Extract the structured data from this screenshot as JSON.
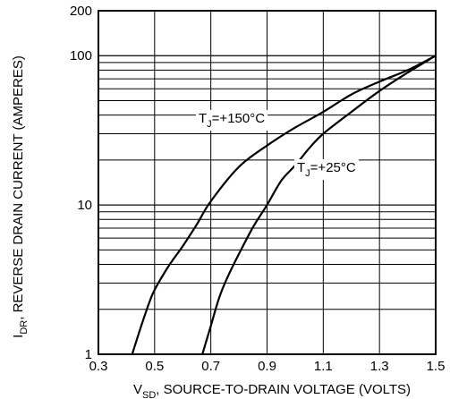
{
  "chart_data": {
    "type": "line",
    "title": "",
    "xlabel": {
      "main": "V",
      "sub": "SD",
      "rest": ", SOURCE-TO-DRAIN VOLTAGE (VOLTS)"
    },
    "ylabel": {
      "main": "I",
      "sub": "DR",
      "rest": ", REVERSE DRAIN CURRENT (AMPERES)"
    },
    "xlim": [
      0.3,
      1.5
    ],
    "ylim": [
      1,
      200
    ],
    "yscale": "log",
    "grid": true,
    "x_ticks": [
      "0.3",
      "0.5",
      "0.7",
      "0.9",
      "1.1",
      "1.3",
      "1.5"
    ],
    "y_ticks": [
      "1",
      "10",
      "100",
      "200"
    ],
    "series": [
      {
        "name": "T_J=+150°C",
        "label_main": "T",
        "label_sub": "J",
        "label_rest": "=+150°C",
        "x": [
          0.42,
          0.45,
          0.48,
          0.5,
          0.55,
          0.6,
          0.65,
          0.7,
          0.8,
          0.9,
          1.0,
          1.1,
          1.2,
          1.3,
          1.4,
          1.5
        ],
        "y": [
          1,
          1.5,
          2.2,
          2.7,
          3.9,
          5.3,
          7.4,
          10.6,
          18,
          25,
          33,
          42,
          55,
          67,
          80,
          100
        ]
      },
      {
        "name": "T_J=+25°C",
        "label_main": "T",
        "label_sub": "J",
        "label_rest": "=+25°C",
        "x": [
          0.67,
          0.7,
          0.73,
          0.76,
          0.8,
          0.85,
          0.9,
          0.95,
          1.0,
          1.05,
          1.1,
          1.2,
          1.3,
          1.4,
          1.5
        ],
        "y": [
          1,
          1.55,
          2.4,
          3.3,
          4.7,
          7.1,
          10,
          14.5,
          18.4,
          24,
          30,
          42,
          58,
          77,
          100
        ]
      }
    ]
  }
}
